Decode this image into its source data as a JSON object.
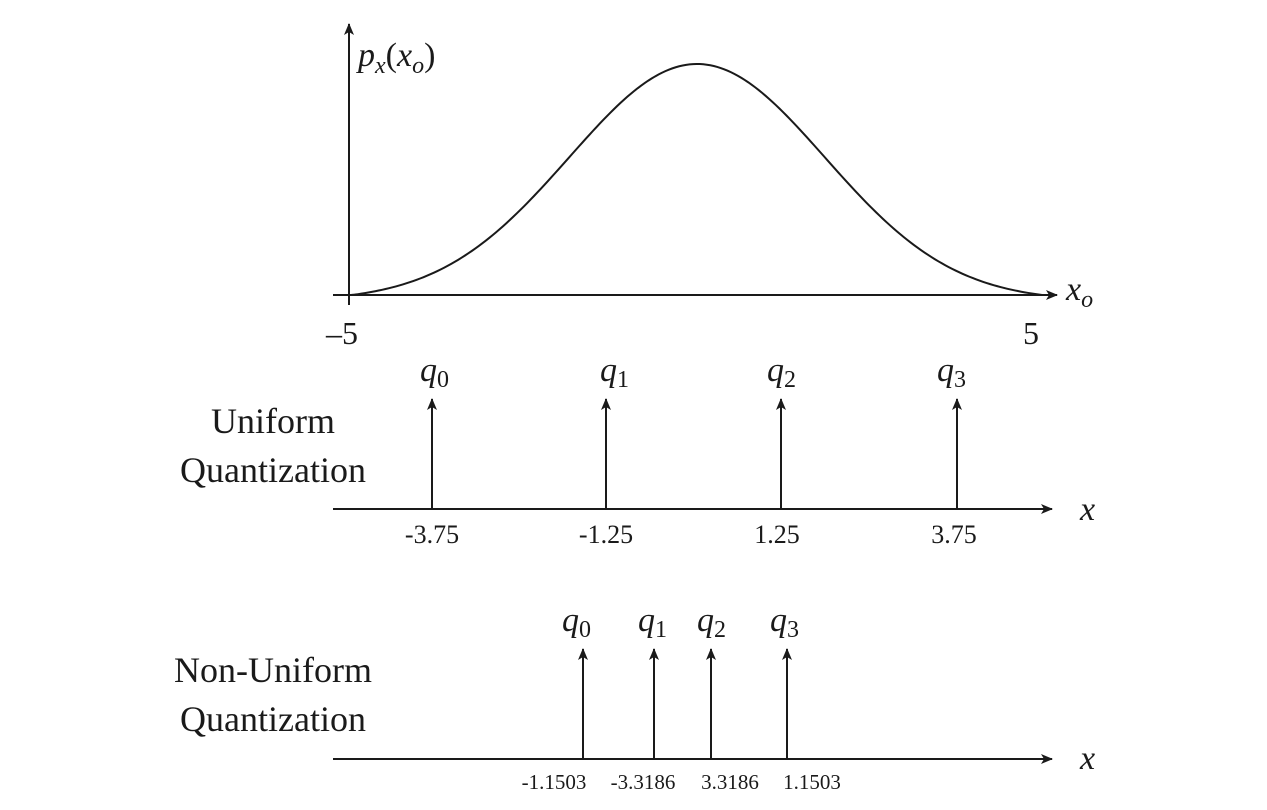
{
  "density_plot": {
    "y_label_base": "p",
    "y_label_sub": "x",
    "y_label_arg_open": "(",
    "y_label_arg_base": "x",
    "y_label_arg_sub": "o",
    "y_label_arg_close": ")",
    "x_label_base": "x",
    "x_label_sub": "o",
    "x_min_label": "–5",
    "x_max_label": "5",
    "x_range": [
      -5,
      5
    ]
  },
  "uniform": {
    "title_line1": "Uniform",
    "title_line2": "Quantization",
    "axis_label": "x",
    "levels": [
      {
        "q": "q",
        "sub": "0",
        "value_label": "-3.75"
      },
      {
        "q": "q",
        "sub": "1",
        "value_label": "-1.25"
      },
      {
        "q": "q",
        "sub": "2",
        "value_label": "1.25"
      },
      {
        "q": "q",
        "sub": "3",
        "value_label": "3.75"
      }
    ]
  },
  "nonuniform": {
    "title_line1": "Non-Uniform",
    "title_line2": "Quantization",
    "axis_label": "x",
    "levels": [
      {
        "q": "q",
        "sub": "0",
        "value_label": "-1.1503"
      },
      {
        "q": "q",
        "sub": "1",
        "value_label": "-3.3186"
      },
      {
        "q": "q",
        "sub": "2",
        "value_label": "3.3186"
      },
      {
        "q": "q",
        "sub": "3",
        "value_label": "1.1503"
      }
    ]
  }
}
